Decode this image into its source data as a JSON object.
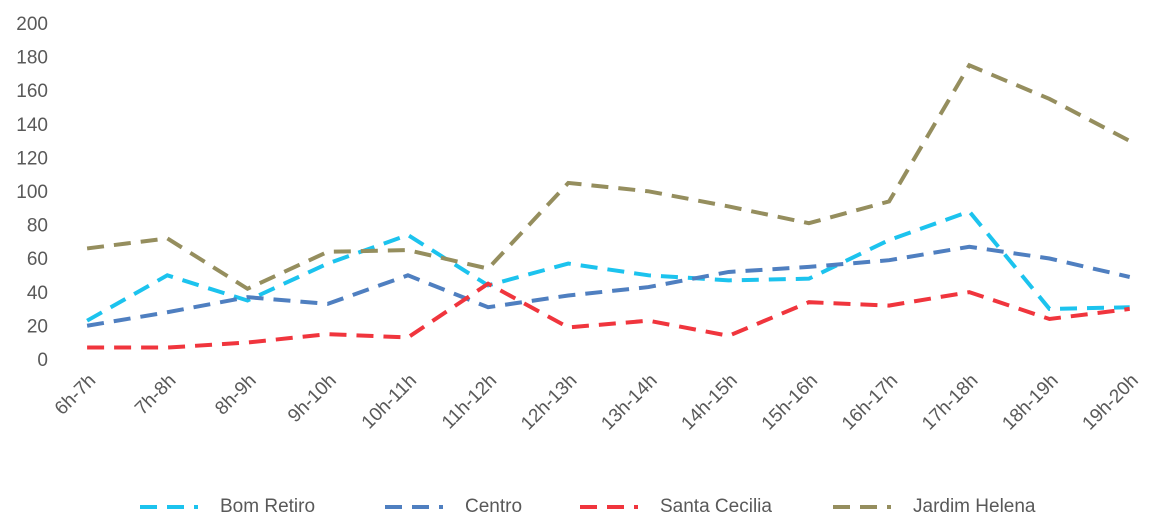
{
  "chart_data": {
    "type": "line",
    "categories": [
      "6h-7h",
      "7h-8h",
      "8h-9h",
      "9h-10h",
      "10h-11h",
      "11h-12h",
      "12h-13h",
      "13h-14h",
      "14h-15h",
      "15h-16h",
      "16h-17h",
      "17h-18h",
      "18h-19h",
      "19h-20h"
    ],
    "series": [
      {
        "name": "Bom Retiro",
        "color": "#1cc3ee",
        "values": [
          24,
          51,
          36,
          58,
          75,
          45,
          58,
          51,
          48,
          49,
          72,
          89,
          31,
          32
        ]
      },
      {
        "name": "Centro",
        "color": "#4f7fc0",
        "values": [
          21,
          29,
          38,
          34,
          51,
          32,
          39,
          44,
          53,
          56,
          60,
          68,
          61,
          50
        ]
      },
      {
        "name": "Santa Cecilia",
        "color": "#f0353d",
        "values": [
          8,
          8,
          11,
          16,
          14,
          46,
          20,
          24,
          15,
          35,
          33,
          41,
          25,
          31
        ]
      },
      {
        "name": "Jardim Helena",
        "color": "#958e5e",
        "values": [
          67,
          73,
          43,
          65,
          66,
          55,
          106,
          101,
          92,
          82,
          95,
          176,
          156,
          131
        ]
      }
    ],
    "ylim": [
      0,
      200
    ],
    "yticks": [
      0,
      20,
      40,
      60,
      80,
      100,
      120,
      140,
      160,
      180,
      200
    ],
    "grid": false,
    "legend": "bottom"
  }
}
